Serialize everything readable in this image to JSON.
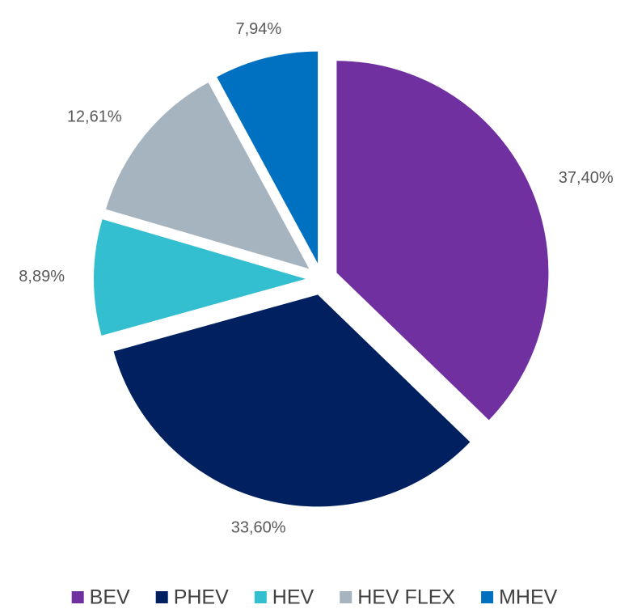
{
  "chart_data": {
    "type": "pie",
    "categories": [
      "BEV",
      "PHEV",
      "HEV",
      "HEV FLEX",
      "MHEV"
    ],
    "values": [
      37.4,
      33.6,
      8.89,
      12.61,
      7.94
    ],
    "value_labels": [
      "37,40%",
      "33,60%",
      "8,89%",
      "12,61%",
      "7,94%"
    ],
    "colors": [
      "#7030a0",
      "#002060",
      "#33bfcf",
      "#a5b4bf",
      "#0070c0"
    ],
    "legend": "bottom"
  }
}
